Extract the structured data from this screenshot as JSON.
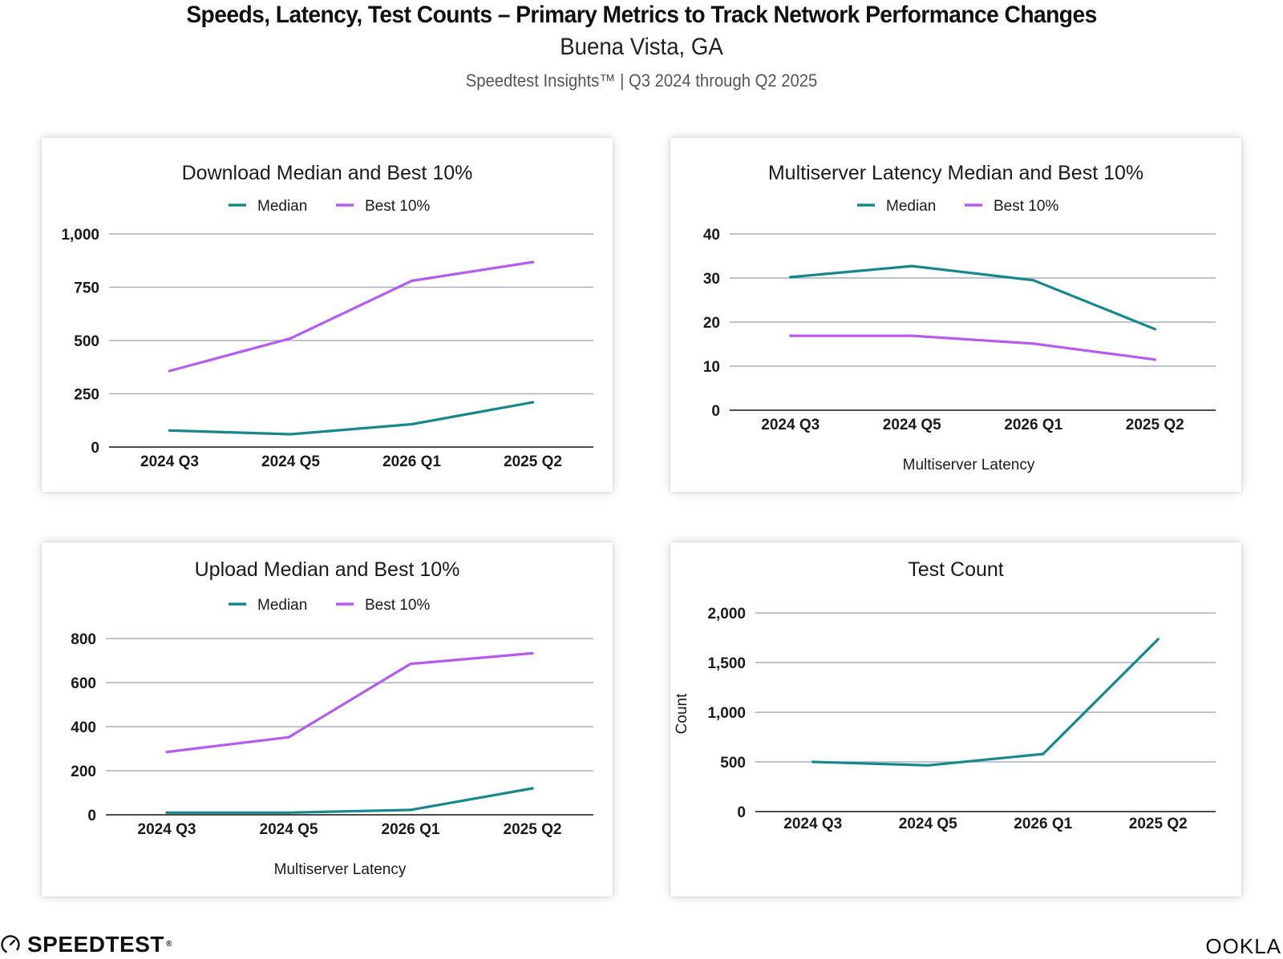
{
  "header": {
    "title": "Speeds, Latency, Test Counts – Primary Metrics to Track Network Performance Changes",
    "subtitle": "Buena Vista, GA",
    "source": "Speedtest Insights™ | Q3 2024 through Q2 2025"
  },
  "colors": {
    "median": "#17878f",
    "best": "#b55bf0",
    "grid": "#a7b1bb"
  },
  "chart_data": [
    {
      "type": "line",
      "title": "Download Median and Best 10%",
      "categories": [
        "2024 Q3",
        "2024 Q5",
        "2026 Q1",
        "2025 Q2"
      ],
      "series": [
        {
          "name": "Median",
          "values": [
            78,
            60,
            107,
            210
          ]
        },
        {
          "name": "Best 10%",
          "values": [
            357,
            510,
            780,
            868
          ]
        }
      ],
      "yticks": [
        0,
        250,
        500,
        750,
        1000
      ],
      "ytick_labels": [
        "0",
        "250",
        "500",
        "750",
        "1,000"
      ],
      "ylim": [
        0,
        1000
      ],
      "xlabel": "",
      "ylabel": ""
    },
    {
      "type": "line",
      "title": "Multiserver Latency Median and Best 10%",
      "categories": [
        "2024 Q3",
        "2024 Q5",
        "2026 Q1",
        "2025 Q2"
      ],
      "series": [
        {
          "name": "Median",
          "values": [
            30.2,
            32.7,
            29.5,
            18.4
          ]
        },
        {
          "name": "Best 10%",
          "values": [
            16.9,
            16.9,
            15.1,
            11.5
          ]
        }
      ],
      "yticks": [
        0,
        10,
        20,
        30,
        40
      ],
      "ytick_labels": [
        "0",
        "10",
        "20",
        "30",
        "40"
      ],
      "ylim": [
        0,
        40
      ],
      "xlabel": "Multiserver Latency",
      "ylabel": ""
    },
    {
      "type": "line",
      "title": "Upload Median and Best 10%",
      "categories": [
        "2024 Q3",
        "2024 Q5",
        "2026 Q1",
        "2025 Q2"
      ],
      "series": [
        {
          "name": "Median",
          "values": [
            10,
            10,
            22,
            120
          ]
        },
        {
          "name": "Best 10%",
          "values": [
            285,
            352,
            685,
            733
          ]
        }
      ],
      "yticks": [
        0,
        200,
        400,
        600,
        800
      ],
      "ytick_labels": [
        "0",
        "200",
        "400",
        "600",
        "800"
      ],
      "ylim": [
        0,
        800
      ],
      "xlabel": "Multiserver Latency",
      "ylabel": ""
    },
    {
      "type": "line",
      "title": "Test Count",
      "categories": [
        "2024 Q3",
        "2024 Q5",
        "2026 Q1",
        "2025 Q2"
      ],
      "series": [
        {
          "name": "Count",
          "values": [
            500,
            465,
            580,
            1735
          ]
        }
      ],
      "yticks": [
        0,
        500,
        1000,
        1500,
        2000
      ],
      "ytick_labels": [
        "0",
        "500",
        "1,000",
        "1,500",
        "2,000"
      ],
      "ylim": [
        0,
        2000
      ],
      "xlabel": "",
      "ylabel": "Count"
    }
  ],
  "footer": {
    "brand": "SPEEDTEST",
    "trademark": "®",
    "brand_icon": "speedometer-icon",
    "company": "OOKLA"
  }
}
